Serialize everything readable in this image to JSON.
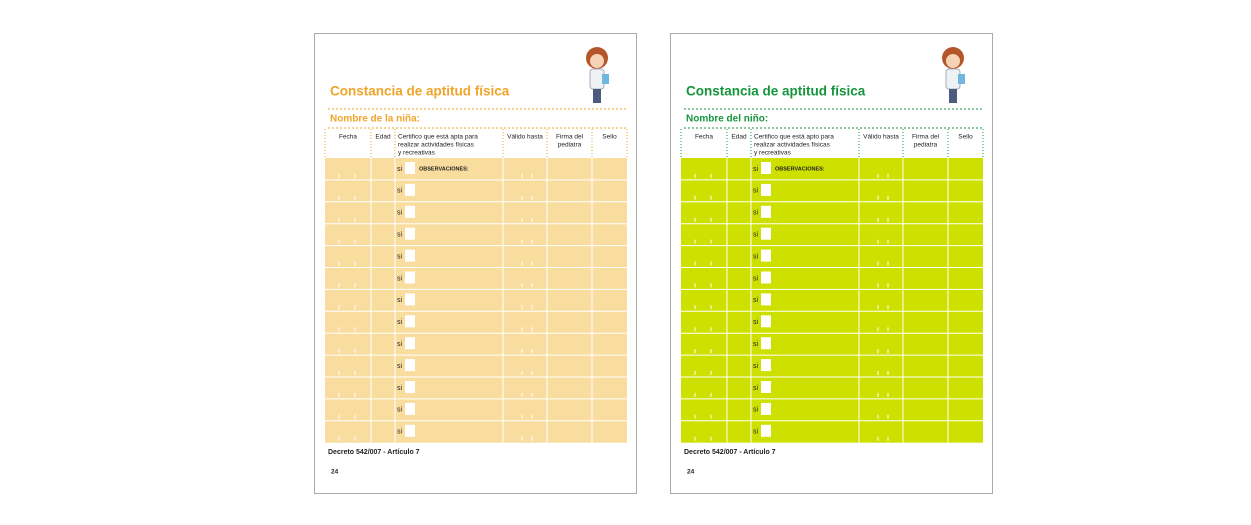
{
  "pages": [
    {
      "title": "Constancia de aptitud física",
      "name_label": "Nombre de la niña:",
      "headers": [
        [
          "Fecha"
        ],
        [
          "Edad"
        ],
        [
          "Certifico que está apta para",
          "realizar actividades físicas",
          "y recreativas"
        ],
        [
          "Válido hasta"
        ],
        [
          "Firma del",
          "pediatra"
        ],
        [
          "Sello"
        ]
      ],
      "observations": "OBSERVACIONES:",
      "rows": [
        "si",
        "si",
        "si",
        "si",
        "si",
        "si",
        "si",
        "si",
        "si",
        "si",
        "si",
        "si",
        "si"
      ],
      "footer": "Decreto 542/007 - Artículo 7",
      "page_number": "24"
    },
    {
      "title": "Constancia de aptitud física",
      "name_label": "Nombre del niño:",
      "headers": [
        [
          "Fecha"
        ],
        [
          "Edad"
        ],
        [
          "Certifico que está apto para",
          "realizar actividades físicas",
          "y recreativas"
        ],
        [
          "Válido hasta"
        ],
        [
          "Firma del",
          "pediatra"
        ],
        [
          "Sello"
        ]
      ],
      "observations": "OBSERVACIONES:",
      "rows": [
        "si",
        "si",
        "si",
        "si",
        "si",
        "si",
        "si",
        "si",
        "si",
        "si",
        "si",
        "si",
        "si"
      ],
      "footer": "Decreto 542/007 - Artículo 7",
      "page_number": "24"
    }
  ]
}
